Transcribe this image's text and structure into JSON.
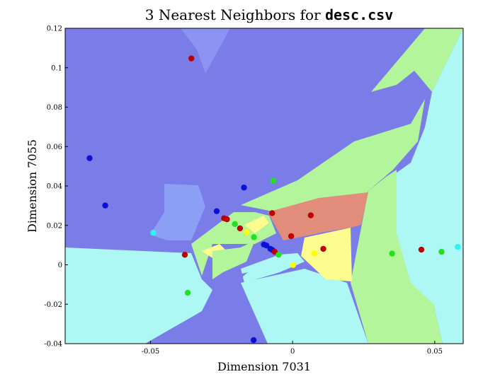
{
  "chart_data": {
    "type": "scatter",
    "title_prefix": "3 Nearest Neighbors for ",
    "title_file": "desc.csv",
    "xlabel": "Dimension 7031",
    "ylabel": "Dimension 7055",
    "xlim": [
      -0.08,
      0.06
    ],
    "ylim": [
      -0.04,
      0.12
    ],
    "xticks": [
      -0.05,
      0,
      0.05
    ],
    "xtick_labels": [
      "-0.05",
      "0",
      "0.05"
    ],
    "yticks": [
      -0.04,
      -0.02,
      0,
      0.02,
      0.04,
      0.06,
      0.08,
      0.1,
      0.12
    ],
    "ytick_labels": [
      "-0.04",
      "-0.02",
      "0",
      "0.02",
      "0.04",
      "0.06",
      "0.08",
      "0.1",
      "0.12"
    ],
    "class_colors": {
      "blue": "#0a12d8",
      "red": "#c00000",
      "green": "#22e022",
      "yellow": "#ffff00",
      "cyan": "#33f0f0"
    },
    "region_colors": {
      "blue": "#7a7ce8",
      "red": "#e28c7c",
      "green": "#b2f59a",
      "yellow": "#fdfc8f",
      "cyan": "#adf8f5"
    },
    "points": [
      {
        "x": -0.0714,
        "y": 0.0541,
        "class": "blue"
      },
      {
        "x": -0.0659,
        "y": 0.0301,
        "class": "blue"
      },
      {
        "x": -0.0267,
        "y": 0.0272,
        "class": "blue"
      },
      {
        "x": -0.0171,
        "y": 0.0392,
        "class": "blue"
      },
      {
        "x": -0.0101,
        "y": 0.0103,
        "class": "blue"
      },
      {
        "x": -0.0092,
        "y": 0.0098,
        "class": "blue"
      },
      {
        "x": -0.0078,
        "y": 0.0081,
        "class": "blue"
      },
      {
        "x": -0.0071,
        "y": 0.0075,
        "class": "blue"
      },
      {
        "x": -0.0137,
        "y": -0.0382,
        "class": "blue"
      },
      {
        "x": -0.0356,
        "y": 0.1047,
        "class": "red"
      },
      {
        "x": -0.0379,
        "y": 0.0051,
        "class": "red"
      },
      {
        "x": -0.0241,
        "y": 0.0236,
        "class": "red"
      },
      {
        "x": -0.0231,
        "y": 0.0231,
        "class": "red"
      },
      {
        "x": -0.0185,
        "y": 0.0185,
        "class": "red"
      },
      {
        "x": -0.0072,
        "y": 0.0262,
        "class": "red"
      },
      {
        "x": -0.0005,
        "y": 0.0145,
        "class": "red"
      },
      {
        "x": -0.0063,
        "y": 0.0066,
        "class": "red"
      },
      {
        "x": 0.0064,
        "y": 0.0251,
        "class": "red"
      },
      {
        "x": 0.0108,
        "y": 0.0081,
        "class": "red"
      },
      {
        "x": 0.0453,
        "y": 0.0077,
        "class": "red"
      },
      {
        "x": -0.0067,
        "y": 0.0426,
        "class": "green"
      },
      {
        "x": -0.0203,
        "y": 0.0207,
        "class": "green"
      },
      {
        "x": -0.0136,
        "y": 0.014,
        "class": "green"
      },
      {
        "x": -0.0049,
        "y": 0.0051,
        "class": "green"
      },
      {
        "x": -0.0369,
        "y": -0.0142,
        "class": "green"
      },
      {
        "x": 0.035,
        "y": 0.0057,
        "class": "green"
      },
      {
        "x": 0.0524,
        "y": 0.0066,
        "class": "green"
      },
      {
        "x": -0.0161,
        "y": 0.0165,
        "class": "yellow"
      },
      {
        "x": 0.0076,
        "y": 0.0058,
        "class": "yellow"
      },
      {
        "x": 0.0002,
        "y": -0.0001,
        "class": "yellow"
      },
      {
        "x": -0.049,
        "y": 0.0163,
        "class": "cyan"
      },
      {
        "x": 0.0581,
        "y": 0.0091,
        "class": "cyan"
      }
    ]
  }
}
